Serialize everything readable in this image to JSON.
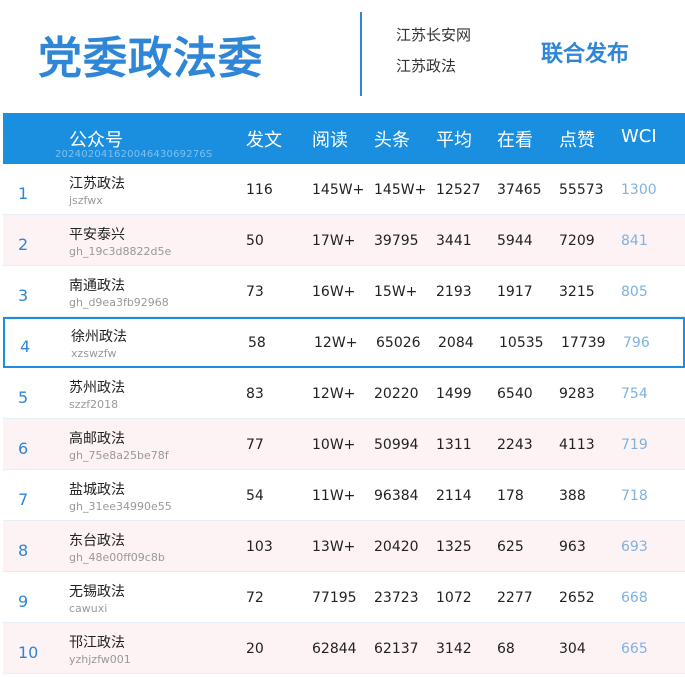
{
  "header": {
    "title": "党委政法委",
    "source_line1": "江苏长安网",
    "source_line2": "江苏政法",
    "joint_label": "联合发布"
  },
  "table": {
    "columns": [
      "公众号",
      "发文",
      "阅读",
      "头条",
      "平均",
      "在看",
      "点赞",
      "WCI"
    ],
    "stamp": "20240204162004643069276S",
    "highlight_rank": 4,
    "rows": [
      {
        "rank": "1",
        "name": "江苏政法",
        "account": "jszfwx",
        "posts": "116",
        "reads": "145W+",
        "headline": "145W+",
        "avg": "12527",
        "looking": "37465",
        "likes": "55573",
        "wci": "1300"
      },
      {
        "rank": "2",
        "name": "平安泰兴",
        "account": "gh_19c3d8822d5e",
        "posts": "50",
        "reads": "17W+",
        "headline": "39795",
        "avg": "3441",
        "looking": "5944",
        "likes": "7209",
        "wci": "841"
      },
      {
        "rank": "3",
        "name": "南通政法",
        "account": "gh_d9ea3fb92968",
        "posts": "73",
        "reads": "16W+",
        "headline": "15W+",
        "avg": "2193",
        "looking": "1917",
        "likes": "3215",
        "wci": "805"
      },
      {
        "rank": "4",
        "name": "徐州政法",
        "account": "xzswzfw",
        "posts": "58",
        "reads": "12W+",
        "headline": "65026",
        "avg": "2084",
        "looking": "10535",
        "likes": "17739",
        "wci": "796"
      },
      {
        "rank": "5",
        "name": "苏州政法",
        "account": "szzf2018",
        "posts": "83",
        "reads": "12W+",
        "headline": "20220",
        "avg": "1499",
        "looking": "6540",
        "likes": "9283",
        "wci": "754"
      },
      {
        "rank": "6",
        "name": "高邮政法",
        "account": "gh_75e8a25be78f",
        "posts": "77",
        "reads": "10W+",
        "headline": "50994",
        "avg": "1311",
        "looking": "2243",
        "likes": "4113",
        "wci": "719"
      },
      {
        "rank": "7",
        "name": "盐城政法",
        "account": "gh_31ee34990e55",
        "posts": "54",
        "reads": "11W+",
        "headline": "96384",
        "avg": "2114",
        "looking": "178",
        "likes": "388",
        "wci": "718"
      },
      {
        "rank": "8",
        "name": "东台政法",
        "account": "gh_48e00ff09c8b",
        "posts": "103",
        "reads": "13W+",
        "headline": "20420",
        "avg": "1325",
        "looking": "625",
        "likes": "963",
        "wci": "693"
      },
      {
        "rank": "9",
        "name": "无锡政法",
        "account": "cawuxi",
        "posts": "72",
        "reads": "77195",
        "headline": "23723",
        "avg": "1072",
        "looking": "2277",
        "likes": "2652",
        "wci": "668"
      },
      {
        "rank": "10",
        "name": "邗江政法",
        "account": "yzhjzfw001",
        "posts": "20",
        "reads": "62844",
        "headline": "62137",
        "avg": "3142",
        "looking": "68",
        "likes": "304",
        "wci": "665"
      }
    ]
  }
}
